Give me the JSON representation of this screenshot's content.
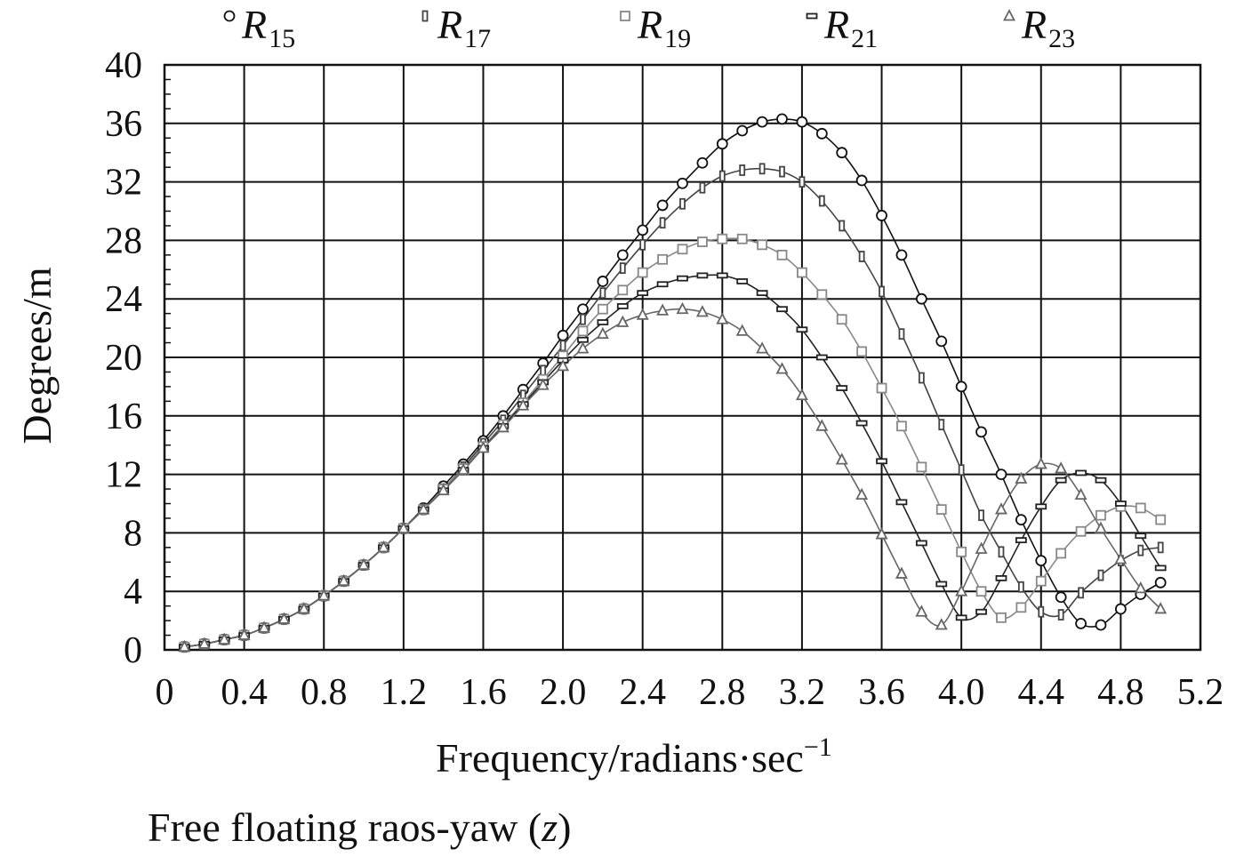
{
  "chart_data": {
    "type": "line",
    "title": "",
    "caption_prefix": "Free floating raos-yaw (",
    "caption_var": "z",
    "caption_suffix": ")",
    "xlabel": "Frequency/radians·sec",
    "xlabel_sup": "−1",
    "ylabel": "Degrees/m",
    "xlim": [
      0,
      5.2
    ],
    "ylim": [
      0,
      40
    ],
    "x_ticks": [
      0,
      0.4,
      0.8,
      1.2,
      1.6,
      2.0,
      2.4,
      2.8,
      3.2,
      3.6,
      4.0,
      4.4,
      4.8,
      5.2
    ],
    "x_tick_labels": [
      "0",
      "0.4",
      "0.8",
      "1.2",
      "1.6",
      "2.0",
      "2.4",
      "2.8",
      "3.2",
      "3.6",
      "4.0",
      "4.4",
      "4.8",
      "5.2"
    ],
    "y_ticks": [
      0,
      4,
      8,
      12,
      16,
      20,
      24,
      28,
      32,
      36,
      40
    ],
    "y_tick_labels": [
      "0",
      "4",
      "8",
      "12",
      "16",
      "20",
      "24",
      "28",
      "32",
      "36",
      "40"
    ],
    "grid": true,
    "legend_position": "top",
    "x": [
      0.1,
      0.2,
      0.3,
      0.4,
      0.5,
      0.6,
      0.7,
      0.8,
      0.9,
      1.0,
      1.1,
      1.2,
      1.3,
      1.4,
      1.5,
      1.6,
      1.7,
      1.8,
      1.9,
      2.0,
      2.1,
      2.2,
      2.3,
      2.4,
      2.5,
      2.6,
      2.7,
      2.8,
      2.9,
      3.0,
      3.1,
      3.2,
      3.3,
      3.4,
      3.5,
      3.6,
      3.7,
      3.8,
      3.9,
      4.0,
      4.1,
      4.2,
      4.3,
      4.4,
      4.5,
      4.6,
      4.7,
      4.8,
      4.9,
      5.0
    ],
    "series": [
      {
        "name": "R",
        "subscript": "15",
        "marker": "circle",
        "color": "#111111",
        "values": [
          0.2,
          0.4,
          0.7,
          1.0,
          1.5,
          2.1,
          2.8,
          3.7,
          4.7,
          5.8,
          7.0,
          8.3,
          9.7,
          11.2,
          12.7,
          14.3,
          16.0,
          17.8,
          19.6,
          21.5,
          23.3,
          25.2,
          27.0,
          28.7,
          30.4,
          31.9,
          33.3,
          34.6,
          35.5,
          36.1,
          36.3,
          36.1,
          35.3,
          34.0,
          32.1,
          29.7,
          27.0,
          24.0,
          21.1,
          18.0,
          14.9,
          12.0,
          8.9,
          6.1,
          3.6,
          1.8,
          1.7,
          2.8,
          3.8,
          4.6
        ]
      },
      {
        "name": "R",
        "subscript": "17",
        "marker": "rect-v",
        "color": "#444444",
        "values": [
          0.2,
          0.4,
          0.7,
          1.0,
          1.5,
          2.1,
          2.8,
          3.7,
          4.7,
          5.8,
          7.0,
          8.3,
          9.6,
          11.0,
          12.5,
          14.1,
          15.7,
          17.4,
          19.1,
          20.8,
          22.6,
          24.4,
          26.1,
          27.7,
          29.2,
          30.5,
          31.6,
          32.4,
          32.8,
          32.9,
          32.7,
          32.0,
          30.7,
          29.0,
          26.9,
          24.5,
          21.6,
          18.6,
          15.4,
          12.3,
          9.2,
          6.7,
          4.3,
          2.6,
          2.4,
          3.9,
          5.1,
          6.1,
          6.8,
          7.0
        ]
      },
      {
        "name": "R",
        "subscript": "19",
        "marker": "square",
        "color": "#888888",
        "values": [
          0.2,
          0.4,
          0.7,
          1.0,
          1.5,
          2.1,
          2.8,
          3.7,
          4.7,
          5.8,
          7.0,
          8.3,
          9.6,
          11.0,
          12.4,
          13.9,
          15.4,
          16.9,
          18.5,
          20.1,
          21.8,
          23.3,
          24.6,
          25.8,
          26.7,
          27.4,
          27.9,
          28.1,
          28.1,
          27.7,
          27.0,
          25.8,
          24.3,
          22.6,
          20.4,
          17.9,
          15.3,
          12.5,
          9.6,
          6.7,
          4.0,
          2.2,
          2.9,
          4.7,
          6.6,
          8.1,
          9.2,
          9.8,
          9.7,
          8.9
        ]
      },
      {
        "name": "R",
        "subscript": "21",
        "marker": "rect-h",
        "color": "#222222",
        "values": [
          0.2,
          0.4,
          0.7,
          1.0,
          1.5,
          2.1,
          2.8,
          3.7,
          4.7,
          5.8,
          7.0,
          8.3,
          9.6,
          10.9,
          12.3,
          13.8,
          15.3,
          16.8,
          18.3,
          19.8,
          21.2,
          22.4,
          23.5,
          24.4,
          25.0,
          25.4,
          25.6,
          25.6,
          25.2,
          24.4,
          23.3,
          21.9,
          20.0,
          17.9,
          15.5,
          12.9,
          10.1,
          7.3,
          4.5,
          2.2,
          2.6,
          4.9,
          7.5,
          9.8,
          11.6,
          12.1,
          11.6,
          10.0,
          7.8,
          5.6
        ]
      },
      {
        "name": "R",
        "subscript": "23",
        "marker": "triangle",
        "color": "#666666",
        "values": [
          0.2,
          0.4,
          0.7,
          1.0,
          1.5,
          2.1,
          2.8,
          3.7,
          4.7,
          5.8,
          7.0,
          8.3,
          9.6,
          10.9,
          12.3,
          13.8,
          15.2,
          16.7,
          18.1,
          19.4,
          20.6,
          21.6,
          22.4,
          22.9,
          23.2,
          23.3,
          23.1,
          22.6,
          21.8,
          20.6,
          19.2,
          17.4,
          15.3,
          13.0,
          10.6,
          7.9,
          5.2,
          2.6,
          1.7,
          4.0,
          6.9,
          9.6,
          11.7,
          12.7,
          12.4,
          10.6,
          8.3,
          6.2,
          4.2,
          2.8
        ]
      }
    ]
  }
}
